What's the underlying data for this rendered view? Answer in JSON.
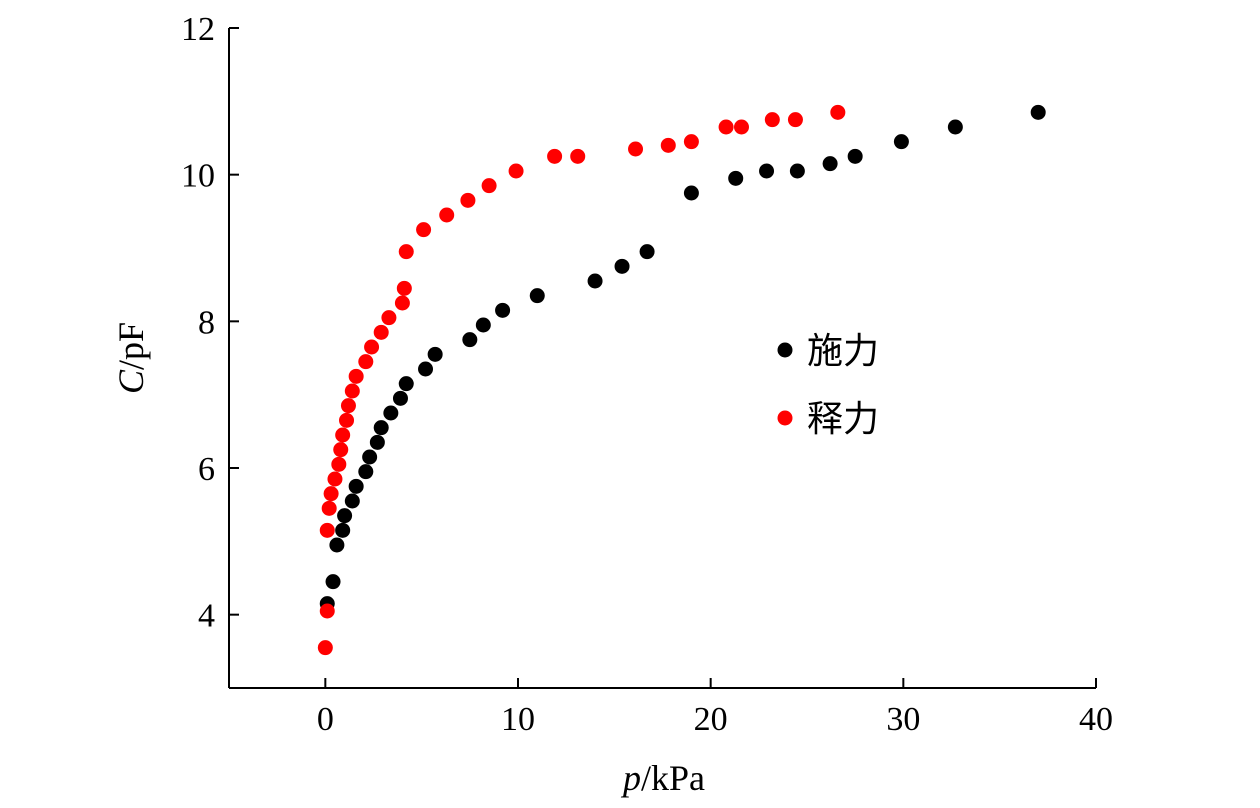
{
  "chart_data": {
    "type": "scatter",
    "xlabel": {
      "var": "p",
      "unit": "/kPa"
    },
    "ylabel": {
      "var": "C",
      "unit": "/pF"
    },
    "xlim": [
      -5,
      40
    ],
    "ylim": [
      3,
      12
    ],
    "xticks": [
      0,
      10,
      20,
      30,
      40
    ],
    "yticks": [
      4,
      6,
      8,
      10,
      12
    ],
    "legend_position": "center-right",
    "series": [
      {
        "name": "施力",
        "color": "#000000",
        "points": [
          [
            0.1,
            4.15
          ],
          [
            0.4,
            4.45
          ],
          [
            0.6,
            4.95
          ],
          [
            0.9,
            5.15
          ],
          [
            1.0,
            5.35
          ],
          [
            1.4,
            5.55
          ],
          [
            1.6,
            5.75
          ],
          [
            2.1,
            5.95
          ],
          [
            2.3,
            6.15
          ],
          [
            2.7,
            6.35
          ],
          [
            2.9,
            6.55
          ],
          [
            3.4,
            6.75
          ],
          [
            3.9,
            6.95
          ],
          [
            4.2,
            7.15
          ],
          [
            5.2,
            7.35
          ],
          [
            5.7,
            7.55
          ],
          [
            7.5,
            7.75
          ],
          [
            8.2,
            7.95
          ],
          [
            9.2,
            8.15
          ],
          [
            11.0,
            8.35
          ],
          [
            14.0,
            8.55
          ],
          [
            15.4,
            8.75
          ],
          [
            16.7,
            8.95
          ],
          [
            19.0,
            9.75
          ],
          [
            21.3,
            9.95
          ],
          [
            22.9,
            10.05
          ],
          [
            24.5,
            10.05
          ],
          [
            26.2,
            10.15
          ],
          [
            27.5,
            10.25
          ],
          [
            29.9,
            10.45
          ],
          [
            32.7,
            10.65
          ],
          [
            37.0,
            10.85
          ]
        ]
      },
      {
        "name": "释力",
        "color": "#ff0000",
        "points": [
          [
            0.0,
            3.55
          ],
          [
            0.1,
            4.05
          ],
          [
            0.1,
            5.15
          ],
          [
            0.2,
            5.45
          ],
          [
            0.3,
            5.65
          ],
          [
            0.5,
            5.85
          ],
          [
            0.7,
            6.05
          ],
          [
            0.8,
            6.25
          ],
          [
            0.9,
            6.45
          ],
          [
            1.1,
            6.65
          ],
          [
            1.2,
            6.85
          ],
          [
            1.4,
            7.05
          ],
          [
            1.6,
            7.25
          ],
          [
            2.1,
            7.45
          ],
          [
            2.4,
            7.65
          ],
          [
            2.9,
            7.85
          ],
          [
            3.3,
            8.05
          ],
          [
            4.0,
            8.25
          ],
          [
            4.1,
            8.45
          ],
          [
            4.2,
            8.95
          ],
          [
            5.1,
            9.25
          ],
          [
            6.3,
            9.45
          ],
          [
            7.4,
            9.65
          ],
          [
            8.5,
            9.85
          ],
          [
            9.9,
            10.05
          ],
          [
            11.9,
            10.25
          ],
          [
            13.1,
            10.25
          ],
          [
            16.1,
            10.35
          ],
          [
            17.8,
            10.4
          ],
          [
            19.0,
            10.45
          ],
          [
            20.8,
            10.65
          ],
          [
            21.6,
            10.65
          ],
          [
            23.2,
            10.75
          ],
          [
            24.4,
            10.75
          ],
          [
            26.6,
            10.85
          ]
        ]
      }
    ]
  }
}
